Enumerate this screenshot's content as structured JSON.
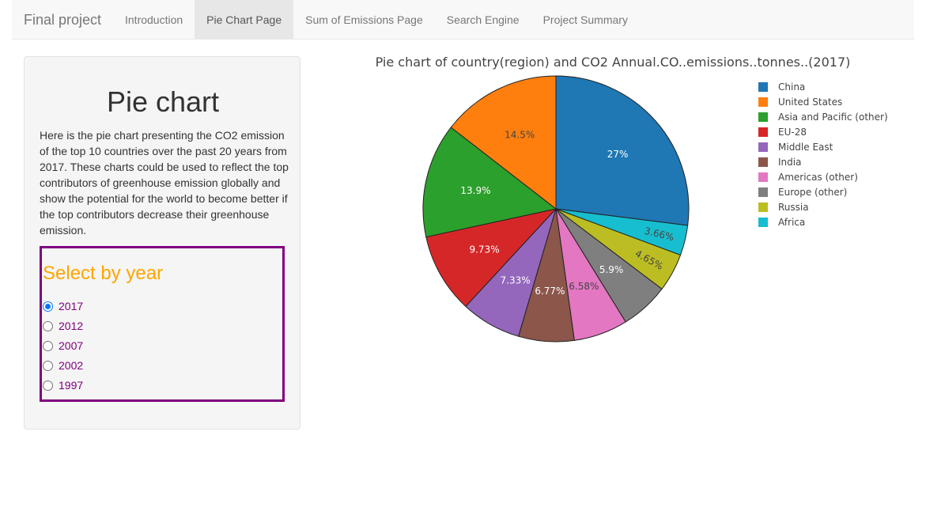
{
  "navbar": {
    "brand": "Final project",
    "tabs": [
      {
        "label": "Introduction",
        "active": false
      },
      {
        "label": "Pie Chart Page",
        "active": true
      },
      {
        "label": "Sum of Emissions Page",
        "active": false
      },
      {
        "label": "Search Engine",
        "active": false
      },
      {
        "label": "Project Summary",
        "active": false
      }
    ]
  },
  "sidebar": {
    "title": "Pie chart",
    "description": "Here is the pie chart presenting the CO2 emission of the top 10 countries over the past 20 years from 2017. These charts could be used to reflect the top contributors of greenhouse emission globally and show the potential for the world to become better if the top contributors decrease their greenhouse emission.",
    "year_selector": {
      "title": "Select by year",
      "options": [
        "2017",
        "2012",
        "2007",
        "2002",
        "1997"
      ],
      "selected": "2017"
    }
  },
  "chart_data": {
    "type": "pie",
    "title": "Pie chart of country(region) and CO2 Annual.CO..emissions..tonnes..(2017)",
    "legend_position": "right",
    "slices": [
      {
        "label": "China",
        "percent": 27,
        "text": "27%",
        "color": "#1f77b4",
        "text_color": "#ffffff"
      },
      {
        "label": "Africa",
        "percent": 3.66,
        "text": "3.66%",
        "color": "#17becf",
        "text_color": "#444444"
      },
      {
        "label": "Russia",
        "percent": 4.65,
        "text": "4.65%",
        "color": "#bcbd22",
        "text_color": "#444444"
      },
      {
        "label": "Europe (other)",
        "percent": 5.9,
        "text": "5.9%",
        "color": "#7f7f7f",
        "text_color": "#ffffff"
      },
      {
        "label": "Americas (other)",
        "percent": 6.58,
        "text": "6.58%",
        "color": "#e377c2",
        "text_color": "#444444"
      },
      {
        "label": "India",
        "percent": 6.77,
        "text": "6.77%",
        "color": "#8c564b",
        "text_color": "#ffffff"
      },
      {
        "label": "Middle East",
        "percent": 7.33,
        "text": "7.33%",
        "color": "#9467bd",
        "text_color": "#ffffff"
      },
      {
        "label": "EU-28",
        "percent": 9.73,
        "text": "9.73%",
        "color": "#d62728",
        "text_color": "#ffffff"
      },
      {
        "label": "Asia and Pacific (other)",
        "percent": 13.9,
        "text": "13.9%",
        "color": "#2ca02c",
        "text_color": "#ffffff"
      },
      {
        "label": "United States",
        "percent": 14.5,
        "text": "14.5%",
        "color": "#ff7f0e",
        "text_color": "#444444"
      }
    ],
    "legend": [
      {
        "label": "China",
        "color": "#1f77b4"
      },
      {
        "label": "United States",
        "color": "#ff7f0e"
      },
      {
        "label": "Asia and Pacific (other)",
        "color": "#2ca02c"
      },
      {
        "label": "EU-28",
        "color": "#d62728"
      },
      {
        "label": "Middle East",
        "color": "#9467bd"
      },
      {
        "label": "India",
        "color": "#8c564b"
      },
      {
        "label": "Americas (other)",
        "color": "#e377c2"
      },
      {
        "label": "Europe (other)",
        "color": "#7f7f7f"
      },
      {
        "label": "Russia",
        "color": "#bcbd22"
      },
      {
        "label": "Africa",
        "color": "#17becf"
      }
    ]
  }
}
